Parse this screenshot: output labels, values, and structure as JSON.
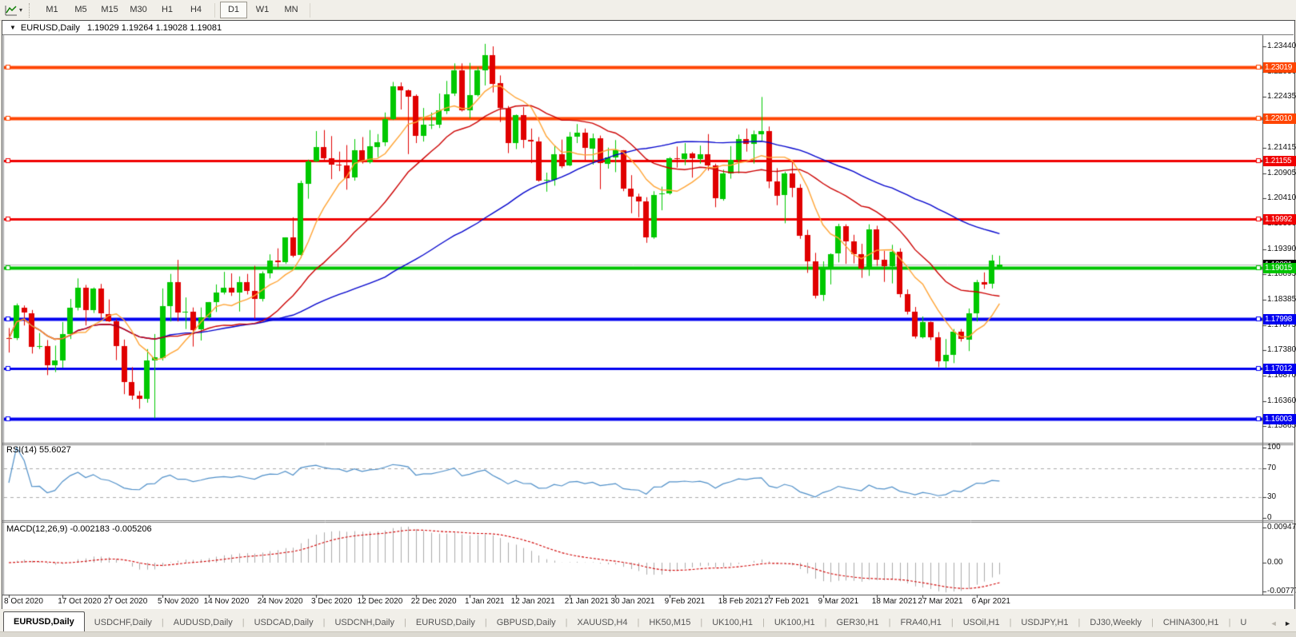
{
  "toolbar": {
    "indicator_icon": "line-chart-icon",
    "timeframes": [
      "M1",
      "M5",
      "M15",
      "M30",
      "H1",
      "H4",
      "D1",
      "W1",
      "MN"
    ],
    "active_timeframe": "D1"
  },
  "caption": {
    "collapse_icon": "▼",
    "symbol_period": "EURUSD,Daily",
    "ohlc_text": "1.19029 1.19264 1.19028 1.19081"
  },
  "price_axis": {
    "ticks": [
      "1.23440",
      "1.22930",
      "1.22435",
      "1.21925",
      "1.21415",
      "1.20905",
      "1.20410",
      "1.19900",
      "1.19390",
      "1.18895",
      "1.18385",
      "1.17875",
      "1.17380",
      "1.16870",
      "1.16360",
      "1.15865"
    ]
  },
  "hlines": [
    {
      "price": 1.23019,
      "label": "1.23019",
      "color": "#FF4500",
      "width": 4
    },
    {
      "price": 1.2201,
      "label": "1.22010",
      "color": "#FF4500",
      "width": 4
    },
    {
      "price": 1.21155,
      "label": "1.21155",
      "color": "#F00000",
      "width": 3
    },
    {
      "price": 1.19992,
      "label": "1.19992",
      "color": "#F00000",
      "width": 3
    },
    {
      "price": 1.19015,
      "label": "1.19015",
      "color": "#00C400",
      "width": 4
    },
    {
      "price": 1.17998,
      "label": "1.17998",
      "color": "#0000F0",
      "width": 4
    },
    {
      "price": 1.17012,
      "label": "1.17012",
      "color": "#0000F0",
      "width": 3
    },
    {
      "price": 1.16003,
      "label": "1.16003",
      "color": "#0000F0",
      "width": 4
    }
  ],
  "bid": {
    "price": 1.19081,
    "label": "1.19081",
    "line_color": "#B8B8B8",
    "tag_color": "#000000"
  },
  "chart_data": {
    "type": "candlestick",
    "symbol": "EURUSD",
    "period": "Daily",
    "bars": 130,
    "up_color": "#00C800",
    "down_color": "#E00000",
    "overlays": [
      {
        "name": "SMA 8",
        "color": "#FFA333",
        "period": 8
      },
      {
        "name": "SMA 20",
        "color": "#CC0000",
        "period": 20
      },
      {
        "name": "SMA 50",
        "color": "#0000CC",
        "period": 50
      }
    ],
    "x_labels": [
      {
        "text": "8 Oct 2020",
        "bar": 0
      },
      {
        "text": "17 Oct 2020",
        "bar": 7
      },
      {
        "text": "27 Oct 2020",
        "bar": 13
      },
      {
        "text": "5 Nov 2020",
        "bar": 20
      },
      {
        "text": "14 Nov 2020",
        "bar": 26
      },
      {
        "text": "24 Nov 2020",
        "bar": 33
      },
      {
        "text": "3 Dec 2020",
        "bar": 40
      },
      {
        "text": "12 Dec 2020",
        "bar": 46
      },
      {
        "text": "22 Dec 2020",
        "bar": 53
      },
      {
        "text": "1 Jan 2021",
        "bar": 60
      },
      {
        "text": "12 Jan 2021",
        "bar": 66
      },
      {
        "text": "21 Jan 2021",
        "bar": 73
      },
      {
        "text": "30 Jan 2021",
        "bar": 79
      },
      {
        "text": "9 Feb 2021",
        "bar": 86
      },
      {
        "text": "18 Feb 2021",
        "bar": 93
      },
      {
        "text": "27 Feb 2021",
        "bar": 99
      },
      {
        "text": "9 Mar 2021",
        "bar": 106
      },
      {
        "text": "18 Mar 2021",
        "bar": 113
      },
      {
        "text": "27 Mar 2021",
        "bar": 119
      },
      {
        "text": "6 Apr 2021",
        "bar": 126
      }
    ],
    "ohlc": [
      [
        1.1762,
        1.1782,
        1.1733,
        1.1761
      ],
      [
        1.1761,
        1.1831,
        1.1758,
        1.1827
      ],
      [
        1.1822,
        1.1827,
        1.1787,
        1.1812
      ],
      [
        1.1812,
        1.1818,
        1.1731,
        1.1745
      ],
      [
        1.1745,
        1.1772,
        1.174,
        1.1746
      ],
      [
        1.1746,
        1.1758,
        1.1688,
        1.1708
      ],
      [
        1.1708,
        1.1747,
        1.1694,
        1.1718
      ],
      [
        1.1718,
        1.1794,
        1.1703,
        1.177
      ],
      [
        1.177,
        1.184,
        1.176,
        1.1822
      ],
      [
        1.1822,
        1.1881,
        1.1817,
        1.1862
      ],
      [
        1.1862,
        1.1868,
        1.1787,
        1.1817
      ],
      [
        1.1817,
        1.1863,
        1.1812,
        1.186
      ],
      [
        1.186,
        1.187,
        1.18,
        1.181
      ],
      [
        1.181,
        1.1839,
        1.1794,
        1.1795
      ],
      [
        1.1795,
        1.18,
        1.1718,
        1.1746
      ],
      [
        1.1746,
        1.1759,
        1.165,
        1.1674
      ],
      [
        1.1674,
        1.1704,
        1.1639,
        1.1647
      ],
      [
        1.1647,
        1.1656,
        1.1621,
        1.1641
      ],
      [
        1.1641,
        1.174,
        1.1633,
        1.1717
      ],
      [
        1.1717,
        1.177,
        1.1602,
        1.1723
      ],
      [
        1.1723,
        1.1861,
        1.1717,
        1.1826
      ],
      [
        1.1826,
        1.189,
        1.1795,
        1.1874
      ],
      [
        1.1874,
        1.1918,
        1.1795,
        1.1813
      ],
      [
        1.1813,
        1.1843,
        1.178,
        1.1815
      ],
      [
        1.1815,
        1.1823,
        1.1745,
        1.1779
      ],
      [
        1.1779,
        1.1823,
        1.1757,
        1.1803
      ],
      [
        1.1803,
        1.1834,
        1.1799,
        1.1834
      ],
      [
        1.1834,
        1.1869,
        1.1814,
        1.1853
      ],
      [
        1.1853,
        1.1894,
        1.1849,
        1.1862
      ],
      [
        1.1862,
        1.1891,
        1.1846,
        1.1853
      ],
      [
        1.1853,
        1.1885,
        1.1815,
        1.1873
      ],
      [
        1.1873,
        1.189,
        1.1849,
        1.1856
      ],
      [
        1.1856,
        1.1906,
        1.18,
        1.184
      ],
      [
        1.184,
        1.1895,
        1.1835,
        1.1891
      ],
      [
        1.1891,
        1.1929,
        1.1881,
        1.1916
      ],
      [
        1.1916,
        1.1941,
        1.1903,
        1.1913
      ],
      [
        1.1913,
        1.1963,
        1.191,
        1.1963
      ],
      [
        1.1963,
        1.2003,
        1.1923,
        1.1927
      ],
      [
        1.1927,
        1.2076,
        1.1922,
        1.2071
      ],
      [
        1.2071,
        1.2118,
        1.204,
        1.2115
      ],
      [
        1.2115,
        1.2175,
        1.2113,
        1.2143
      ],
      [
        1.2143,
        1.2177,
        1.2115,
        1.2121
      ],
      [
        1.2121,
        1.2165,
        1.2079,
        1.2108
      ],
      [
        1.2108,
        1.2134,
        1.2095,
        1.2106
      ],
      [
        1.2106,
        1.2147,
        1.2058,
        1.2081
      ],
      [
        1.2081,
        1.2159,
        1.2076,
        1.2136
      ],
      [
        1.2136,
        1.2163,
        1.211,
        1.2112
      ],
      [
        1.2112,
        1.2177,
        1.211,
        1.2144
      ],
      [
        1.2144,
        1.2169,
        1.2123,
        1.2153
      ],
      [
        1.2153,
        1.2212,
        1.2145,
        1.2199
      ],
      [
        1.2199,
        1.2273,
        1.2197,
        1.2265
      ],
      [
        1.2265,
        1.2272,
        1.2218,
        1.2257
      ],
      [
        1.2257,
        1.2258,
        1.2129,
        1.2245
      ],
      [
        1.2245,
        1.2248,
        1.2151,
        1.2165
      ],
      [
        1.2165,
        1.2221,
        1.2154,
        1.2187
      ],
      [
        1.2187,
        1.2212,
        1.2179,
        1.2187
      ],
      [
        1.2187,
        1.225,
        1.2181,
        1.2216
      ],
      [
        1.2216,
        1.2275,
        1.2209,
        1.2249
      ],
      [
        1.2249,
        1.231,
        1.2245,
        1.2296
      ],
      [
        1.2296,
        1.231,
        1.2214,
        1.2216
      ],
      [
        1.2216,
        1.2311,
        1.22,
        1.2246
      ],
      [
        1.2246,
        1.2303,
        1.2244,
        1.2296
      ],
      [
        1.2296,
        1.2349,
        1.2266,
        1.2327
      ],
      [
        1.2327,
        1.2344,
        1.2252,
        1.227
      ],
      [
        1.227,
        1.2286,
        1.2193,
        1.222
      ],
      [
        1.222,
        1.2225,
        1.2131,
        1.2151
      ],
      [
        1.2151,
        1.2208,
        1.2139,
        1.2207
      ],
      [
        1.2207,
        1.2223,
        1.2141,
        1.2158
      ],
      [
        1.2158,
        1.218,
        1.2111,
        1.2155
      ],
      [
        1.2155,
        1.2163,
        1.2074,
        1.2077
      ],
      [
        1.2077,
        1.2092,
        1.2054,
        1.2078
      ],
      [
        1.2078,
        1.2145,
        1.2066,
        1.2129
      ],
      [
        1.2129,
        1.2158,
        1.2101,
        1.2105
      ],
      [
        1.2105,
        1.2173,
        1.2105,
        1.2163
      ],
      [
        1.2163,
        1.2189,
        1.2151,
        1.2171
      ],
      [
        1.2171,
        1.218,
        1.2116,
        1.214
      ],
      [
        1.214,
        1.217,
        1.2108,
        1.216
      ],
      [
        1.216,
        1.2166,
        1.2059,
        1.211
      ],
      [
        1.211,
        1.2142,
        1.21,
        1.2122
      ],
      [
        1.2122,
        1.2157,
        1.2093,
        1.2136
      ],
      [
        1.2136,
        1.2137,
        1.2055,
        1.206
      ],
      [
        1.206,
        1.2087,
        1.2011,
        1.2044
      ],
      [
        1.2044,
        1.205,
        1.2003,
        1.2035
      ],
      [
        1.2035,
        1.2043,
        1.1952,
        1.1963
      ],
      [
        1.1963,
        1.2055,
        1.196,
        1.2048
      ],
      [
        1.2048,
        1.2064,
        1.2017,
        1.205
      ],
      [
        1.205,
        1.2123,
        1.2048,
        1.212
      ],
      [
        1.212,
        1.2144,
        1.2102,
        1.2119
      ],
      [
        1.2119,
        1.2151,
        1.2107,
        1.213
      ],
      [
        1.213,
        1.2133,
        1.2082,
        1.212
      ],
      [
        1.212,
        1.2146,
        1.211,
        1.2129
      ],
      [
        1.2129,
        1.2169,
        1.2096,
        1.2106
      ],
      [
        1.2106,
        1.211,
        1.2023,
        1.204
      ],
      [
        1.204,
        1.2098,
        1.2036,
        1.2091
      ],
      [
        1.2091,
        1.2145,
        1.208,
        1.2118
      ],
      [
        1.2118,
        1.2168,
        1.2091,
        1.2159
      ],
      [
        1.2159,
        1.218,
        1.2134,
        1.215
      ],
      [
        1.215,
        1.2176,
        1.211,
        1.2169
      ],
      [
        1.2169,
        1.2243,
        1.2155,
        1.2175
      ],
      [
        1.2175,
        1.2184,
        1.2061,
        1.2075
      ],
      [
        1.2075,
        1.2101,
        1.2027,
        1.2047
      ],
      [
        1.2047,
        1.2094,
        1.1991,
        1.209
      ],
      [
        1.209,
        1.2113,
        1.2043,
        1.2062
      ],
      [
        1.2062,
        1.2069,
        1.196,
        1.1967
      ],
      [
        1.1967,
        1.1978,
        1.1892,
        1.1915
      ],
      [
        1.1915,
        1.1932,
        1.1841,
        1.1847
      ],
      [
        1.1847,
        1.1915,
        1.1836,
        1.19
      ],
      [
        1.19,
        1.1931,
        1.1869,
        1.193
      ],
      [
        1.193,
        1.199,
        1.1913,
        1.1985
      ],
      [
        1.1985,
        1.1989,
        1.191,
        1.1955
      ],
      [
        1.1955,
        1.1968,
        1.1911,
        1.1929
      ],
      [
        1.1929,
        1.195,
        1.1882,
        1.1901
      ],
      [
        1.1901,
        1.1989,
        1.1886,
        1.1979
      ],
      [
        1.1979,
        1.1986,
        1.1906,
        1.1918
      ],
      [
        1.1918,
        1.1936,
        1.1874,
        1.1905
      ],
      [
        1.1905,
        1.1948,
        1.1871,
        1.1934
      ],
      [
        1.1934,
        1.1941,
        1.1843,
        1.1849
      ],
      [
        1.1849,
        1.1859,
        1.1809,
        1.1814
      ],
      [
        1.1814,
        1.1824,
        1.1761,
        1.1764
      ],
      [
        1.1764,
        1.1805,
        1.1761,
        1.1794
      ],
      [
        1.1794,
        1.1795,
        1.1758,
        1.1764
      ],
      [
        1.1764,
        1.1774,
        1.1704,
        1.1716
      ],
      [
        1.1716,
        1.176,
        1.1702,
        1.1729
      ],
      [
        1.1729,
        1.178,
        1.1712,
        1.1775
      ],
      [
        1.1775,
        1.178,
        1.1755,
        1.176
      ],
      [
        1.176,
        1.1821,
        1.1736,
        1.1812
      ],
      [
        1.1812,
        1.1878,
        1.1795,
        1.1874
      ],
      [
        1.1874,
        1.1893,
        1.186,
        1.187
      ],
      [
        1.187,
        1.1928,
        1.1861,
        1.1916
      ],
      [
        1.19029,
        1.19264,
        1.19028,
        1.19081
      ]
    ]
  },
  "rsi": {
    "label": "RSI(14) 55.6027",
    "value": "55.6027",
    "period": 14,
    "levels": [
      70,
      30
    ],
    "scale_labels": [
      "100",
      "70",
      "30",
      "0"
    ],
    "scale_values": [
      100,
      70,
      30,
      0
    ],
    "color": "#4F8FC8",
    "level_color": "#AAAAAA"
  },
  "macd": {
    "label": "MACD(12,26,9) -0.002183 -0.005206",
    "macd_value": "-0.002183",
    "signal_value": "-0.005206",
    "scale_labels": [
      "0.009478",
      "0.00",
      "-0.00777"
    ],
    "scale_values": [
      0.009478,
      0,
      -0.00777
    ],
    "histogram_color": "#ABABAB",
    "signal_color": "#D00000"
  },
  "tabs": {
    "items": [
      "EURUSD,Daily",
      "USDCHF,Daily",
      "AUDUSD,Daily",
      "USDCAD,Daily",
      "USDCNH,Daily",
      "EURUSD,Daily",
      "GBPUSD,Daily",
      "XAUUSD,H4",
      "HK50,M15",
      "UK100,H1",
      "UK100,H1",
      "GER30,H1",
      "FRA40,H1",
      "USOil,H1",
      "USDJPY,H1",
      "DJ30,Weekly",
      "CHINA300,H1",
      "U"
    ],
    "active_index": 0,
    "scroll_left_icon": "◄",
    "scroll_right_icon": "►"
  }
}
